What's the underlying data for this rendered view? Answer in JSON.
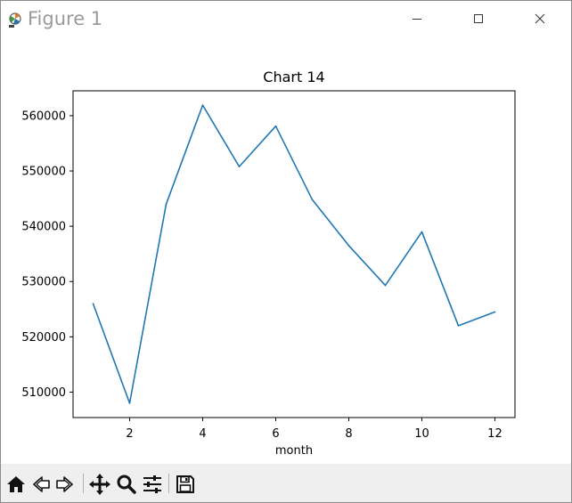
{
  "window": {
    "title": "Figure 1"
  },
  "toolbar": {
    "buttons": [
      {
        "name": "home",
        "icon": "home-icon"
      },
      {
        "name": "back",
        "icon": "back-arrow-icon"
      },
      {
        "name": "forward",
        "icon": "forward-arrow-icon"
      },
      {
        "name": "pan",
        "icon": "move-icon"
      },
      {
        "name": "zoom",
        "icon": "magnifier-icon"
      },
      {
        "name": "configure-subplots",
        "icon": "sliders-icon"
      },
      {
        "name": "save",
        "icon": "floppy-disk-icon"
      }
    ]
  },
  "chart_data": {
    "type": "line",
    "title": "Chart 14",
    "xlabel": "month",
    "ylabel": "",
    "x": [
      1,
      2,
      3,
      4,
      5,
      6,
      7,
      8,
      9,
      10,
      11,
      12
    ],
    "series": [
      {
        "values": [
          526000,
          508000,
          544000,
          561900,
          550800,
          558100,
          544800,
          536500,
          529300,
          539000,
          522000,
          524500
        ],
        "color": "#1f77b4"
      }
    ],
    "xticks": [
      2,
      4,
      6,
      8,
      10,
      12
    ],
    "xtick_labels": [
      "2",
      "4",
      "6",
      "8",
      "10",
      "12"
    ],
    "yticks": [
      510000,
      520000,
      530000,
      540000,
      550000,
      560000
    ],
    "ytick_labels": [
      "510000",
      "520000",
      "530000",
      "540000",
      "550000",
      "560000"
    ],
    "xlim": [
      0.45,
      12.55
    ],
    "ylim": [
      505400,
      564500
    ],
    "grid": false,
    "legend": "none"
  }
}
